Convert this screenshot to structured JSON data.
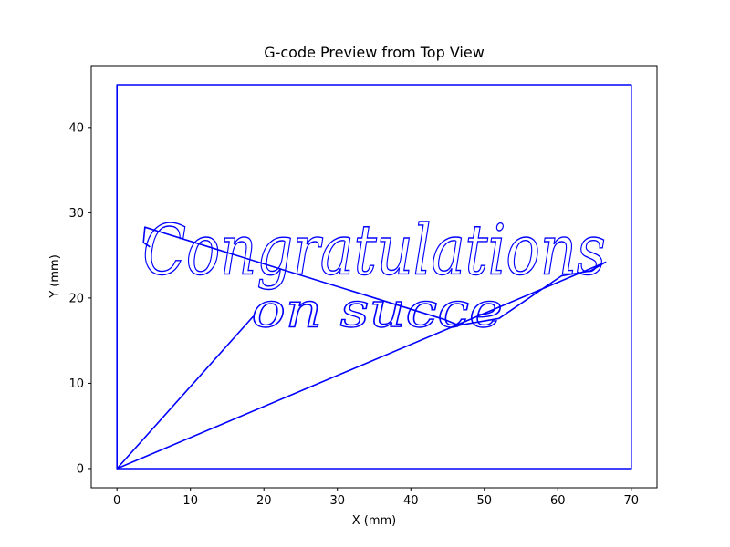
{
  "chart_data": {
    "type": "line",
    "title": "G-code Preview from Top View",
    "xlabel": "X (mm)",
    "ylabel": "Y (mm)",
    "xlim": [
      -3.5,
      73.5
    ],
    "ylim": [
      -2.25,
      47.25
    ],
    "xticks": [
      "0",
      "10",
      "20",
      "30",
      "40",
      "50",
      "60",
      "70"
    ],
    "yticks": [
      "0",
      "10",
      "20",
      "30",
      "40"
    ],
    "grid": false,
    "line_color": "#0000ff",
    "series": [
      {
        "values_label": "border",
        "x": [
          0,
          70,
          70,
          0,
          0
        ],
        "y": [
          0,
          0,
          45,
          45,
          0
        ]
      },
      {
        "values_label": "travel-moves",
        "x": [
          0,
          18.5,
          0,
          66.5,
          64.5,
          60.5,
          52.0,
          46.5,
          44.5,
          3.8,
          3.6,
          4.5
        ],
        "y": [
          0,
          17.8,
          0,
          24.2,
          23.2,
          22.6,
          17.6,
          16.8,
          17.5,
          28.3,
          26.5,
          26.0
        ]
      }
    ],
    "text_strokes": [
      {
        "text": "Congratulations",
        "x": 3.5,
        "y": 22.8,
        "height": 6.5
      },
      {
        "text": "on succe",
        "x": 18.3,
        "y": 16.6,
        "height": 4.5
      }
    ]
  }
}
